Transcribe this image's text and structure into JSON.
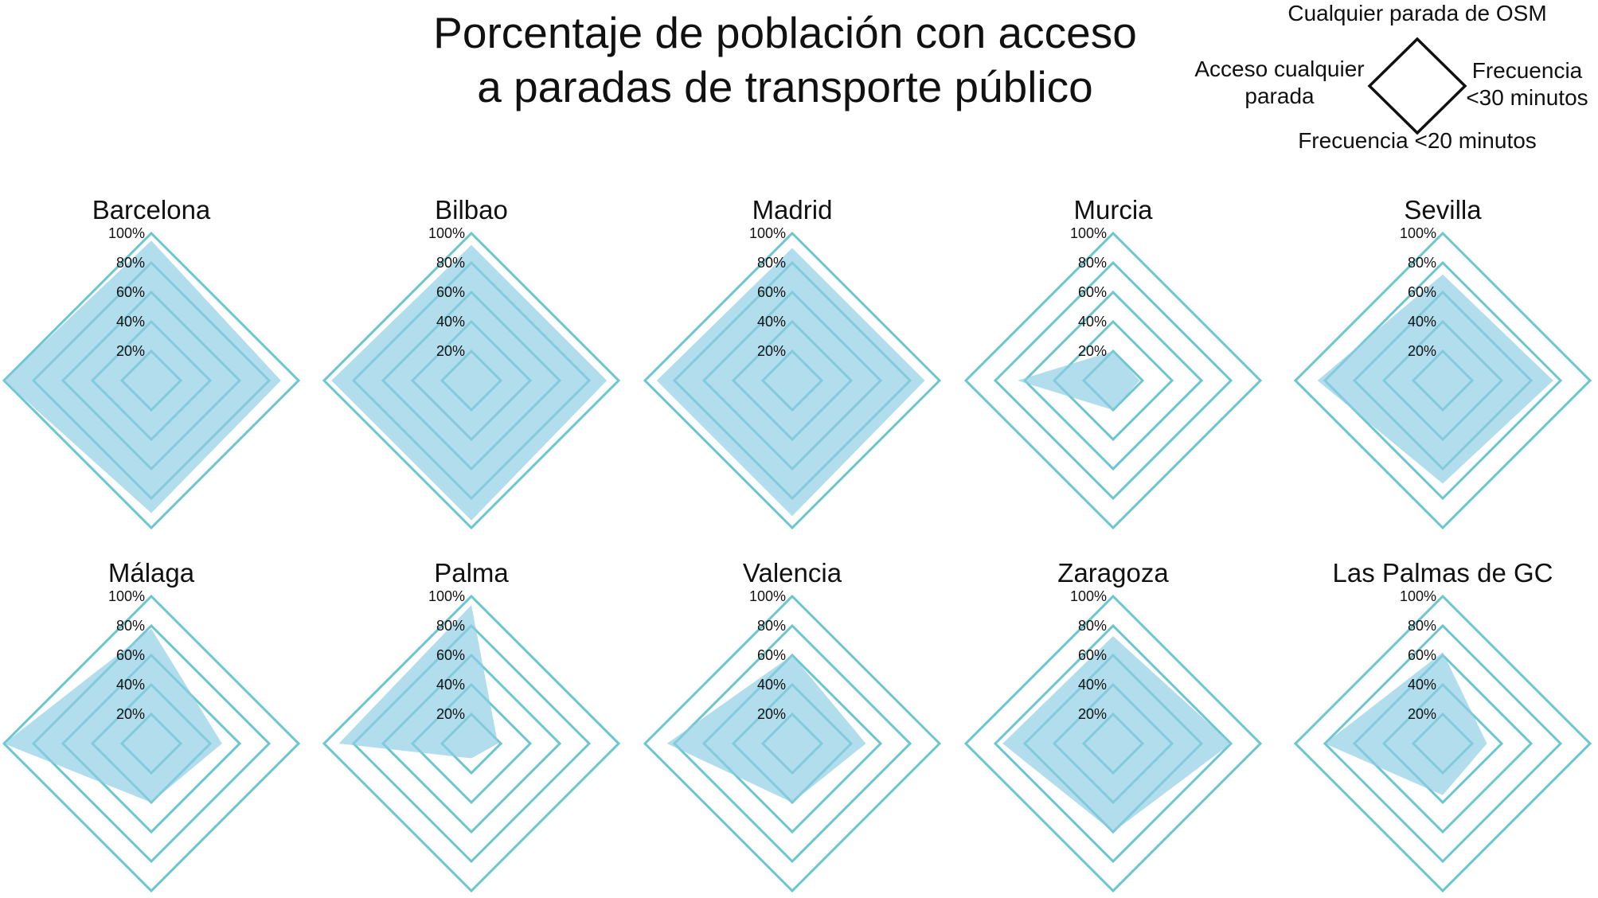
{
  "title_lines": [
    "Porcentaje de población con acceso",
    "a paradas de transporte público"
  ],
  "legend": {
    "top": "Cualquier parada de OSM",
    "left_line1": "Acceso cualquier",
    "left_line2": "parada",
    "right_line1": "Frecuencia",
    "right_line2": "<30 minutos",
    "bottom": "Frecuencia <20 minutos"
  },
  "colors": {
    "grid": "#6cc6d0",
    "fill": "#8ccde3",
    "text": "#111111"
  },
  "chart_data": {
    "type": "radar",
    "axes": [
      "Cualquier parada de OSM",
      "Frecuencia <30 minutos",
      "Frecuencia <20 minutos",
      "Acceso cualquier parada"
    ],
    "tick_labels": [
      "20%",
      "40%",
      "60%",
      "80%",
      "100%"
    ],
    "range": [
      0,
      100
    ],
    "charts": [
      {
        "title": "Barcelona",
        "values": [
          95,
          88,
          90,
          100
        ]
      },
      {
        "title": "Bilbao",
        "values": [
          92,
          92,
          95,
          95
        ]
      },
      {
        "title": "Madrid",
        "values": [
          90,
          90,
          92,
          92
        ]
      },
      {
        "title": "Murcia",
        "values": [
          20,
          18,
          20,
          65
        ]
      },
      {
        "title": "Sevilla",
        "values": [
          72,
          75,
          70,
          85
        ]
      },
      {
        "title": "Málaga",
        "values": [
          78,
          48,
          40,
          100
        ]
      },
      {
        "title": "Palma",
        "values": [
          94,
          18,
          10,
          90
        ]
      },
      {
        "title": "Valencia",
        "values": [
          60,
          50,
          40,
          85
        ]
      },
      {
        "title": "Zaragoza",
        "values": [
          73,
          80,
          60,
          75
        ]
      },
      {
        "title": "Las Palmas de GC",
        "values": [
          62,
          30,
          35,
          80
        ]
      }
    ]
  }
}
